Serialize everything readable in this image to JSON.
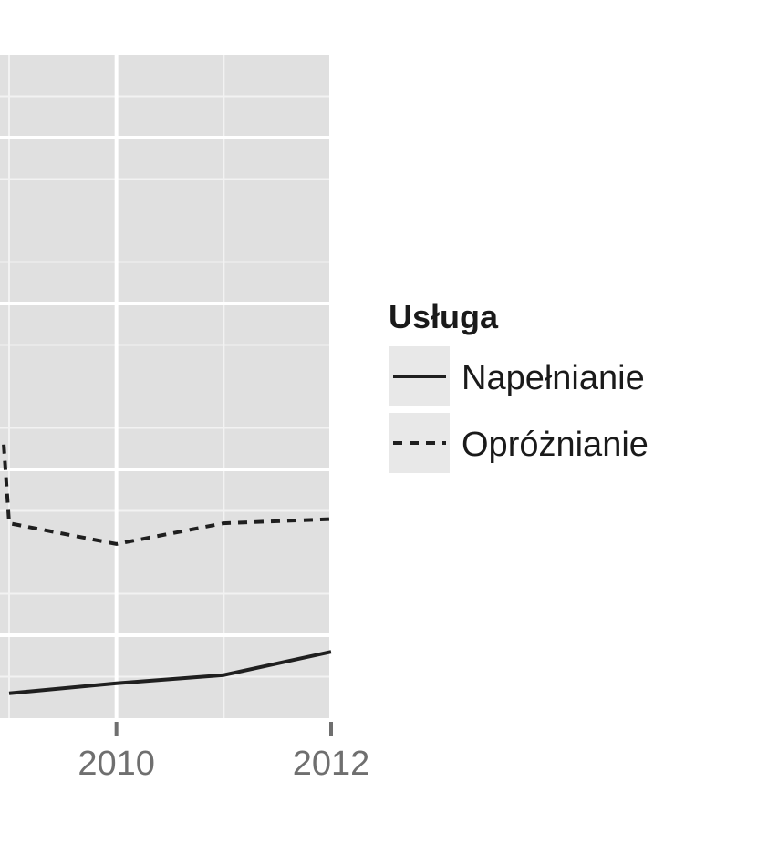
{
  "chart_data": {
    "type": "line",
    "x_ticks": [
      2010,
      2012
    ],
    "x_tick_labels": [
      "2010",
      "2012"
    ],
    "xlim": [
      2009,
      2012
    ],
    "ylim": [
      0,
      8
    ],
    "grid": true,
    "legend_position": "right",
    "legend_title": "Usługa",
    "series": [
      {
        "name": "Napełnianie",
        "style": "solid",
        "x": [
          2009,
          2010,
          2011,
          2012
        ],
        "y": [
          0.3,
          0.42,
          0.52,
          0.8
        ]
      },
      {
        "name": "Opróżnianie",
        "style": "dashed",
        "x": [
          2008.95,
          2009,
          2010,
          2011,
          2012
        ],
        "y": [
          3.3,
          2.35,
          2.1,
          2.35,
          2.4
        ]
      }
    ],
    "colors": {
      "panel": "#e0e0e0",
      "grid_major": "#ffffff",
      "grid_minor": "#f2f2f2",
      "line": "#1f1f1f",
      "legend_key_bg": "#e8e8e8",
      "tick": "#6f6f6f"
    }
  }
}
